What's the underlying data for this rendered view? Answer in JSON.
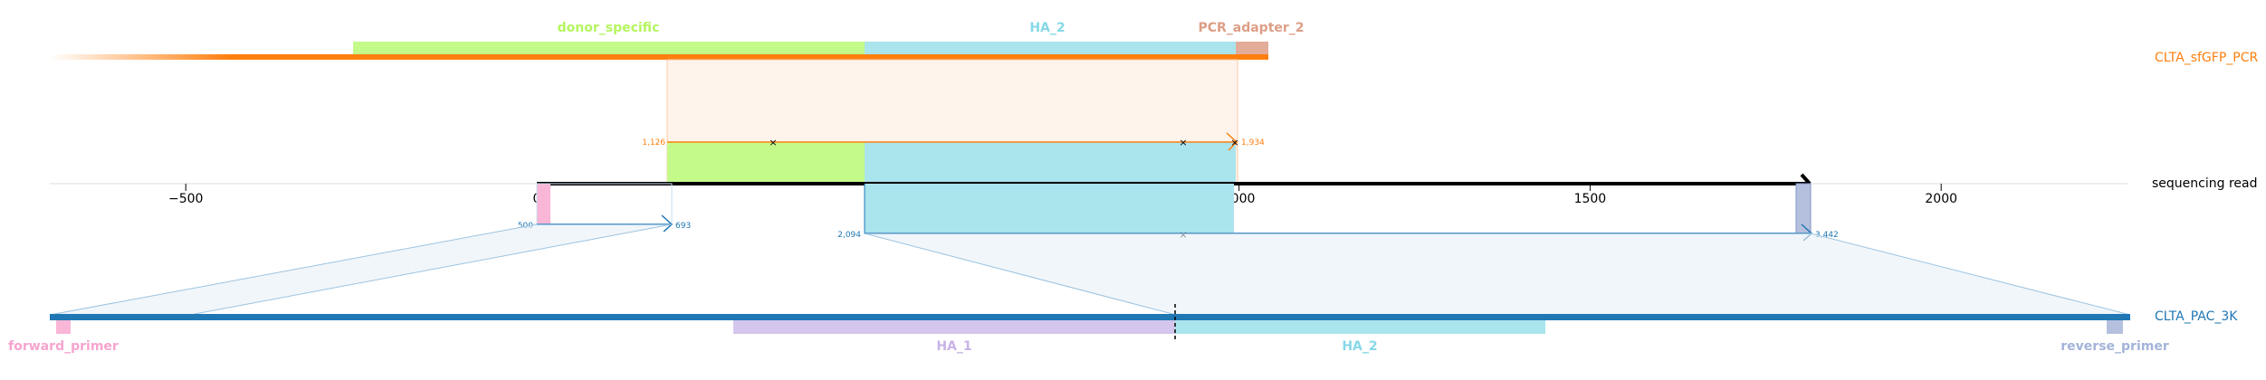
{
  "axis": {
    "ticks": [
      {
        "value": -500,
        "label": "−500"
      },
      {
        "value": 0,
        "label": "0"
      },
      {
        "value": 500,
        "label": "500"
      },
      {
        "value": 1000,
        "label": "1000"
      },
      {
        "value": 1500,
        "label": "1500"
      },
      {
        "value": 2000,
        "label": "2000"
      }
    ],
    "xlim": [
      -700,
      2265
    ],
    "read_start": 0,
    "read_end": 1810,
    "row_label": "sequencing read"
  },
  "top_track": {
    "label": "CLTA_sfGFP_PCR",
    "color": "#ff7f0e",
    "features": [
      {
        "name": "donor_specific",
        "color": "#b5f55f"
      },
      {
        "name": "HA_2",
        "color": "#86d8e7"
      },
      {
        "name": "PCR_adapter_2",
        "color": "#dd9e86"
      }
    ],
    "alignment": {
      "read_start": 186,
      "read_end": 993,
      "ref_start_label": "1,126",
      "ref_end_label": "1,934"
    }
  },
  "bottom_track": {
    "label": "CLTA_PAC_3K",
    "color": "#1f77b4",
    "features": [
      {
        "name": "forward_primer",
        "color": "#f6a4cf"
      },
      {
        "name": "HA_1",
        "color": "#c8b3e6"
      },
      {
        "name": "HA_2",
        "color": "#86d8e7"
      },
      {
        "name": "reverse_primer",
        "color": "#a3b3d9"
      }
    ],
    "alignments": [
      {
        "read_start": 0,
        "read_end": 190,
        "ref_start_label": "500",
        "ref_end_label": "693"
      },
      {
        "read_start": 465,
        "read_end": 1810,
        "ref_start_label": "2,094",
        "ref_end_label": "3,442"
      }
    ]
  },
  "colors": {
    "read": "#000000",
    "axis": "#cccccc",
    "orange": "#ff7f0e",
    "blue": "#1f77b4"
  }
}
